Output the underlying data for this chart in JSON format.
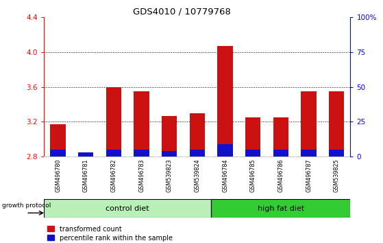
{
  "title": "GDS4010 / 10779768",
  "samples": [
    "GSM496780",
    "GSM496781",
    "GSM496782",
    "GSM496783",
    "GSM539823",
    "GSM539824",
    "GSM496784",
    "GSM496785",
    "GSM496786",
    "GSM496787",
    "GSM539825"
  ],
  "transformed_count": [
    3.17,
    2.84,
    3.6,
    3.55,
    3.27,
    3.3,
    4.07,
    3.25,
    3.25,
    3.55,
    3.55
  ],
  "percentile_rank_pct": [
    5,
    3,
    5,
    5,
    4,
    5,
    9,
    5,
    5,
    5,
    5
  ],
  "base_value": 2.8,
  "ylim_left": [
    2.8,
    4.4
  ],
  "ylim_right": [
    0,
    100
  ],
  "yticks_left": [
    2.8,
    3.2,
    3.6,
    4.0,
    4.4
  ],
  "yticks_right": [
    0,
    25,
    50,
    75,
    100
  ],
  "ytick_labels_right": [
    "0",
    "25",
    "50",
    "75",
    "100%"
  ],
  "grid_lines": [
    3.2,
    3.6,
    4.0
  ],
  "bar_color_red": "#cc1111",
  "bar_color_blue": "#1111cc",
  "control_diet_label": "control diet",
  "high_fat_diet_label": "high fat diet",
  "growth_protocol_label": "growth protocol",
  "legend_red_label": "transformed count",
  "legend_blue_label": "percentile rank within the sample",
  "bg_color": "#ffffff",
  "bar_width": 0.55,
  "control_diet_color_light": "#b8f0b8",
  "control_diet_color_dark": "#44cc44",
  "high_fat_diet_color": "#33cc33",
  "label_area_color": "#d0d0d0"
}
